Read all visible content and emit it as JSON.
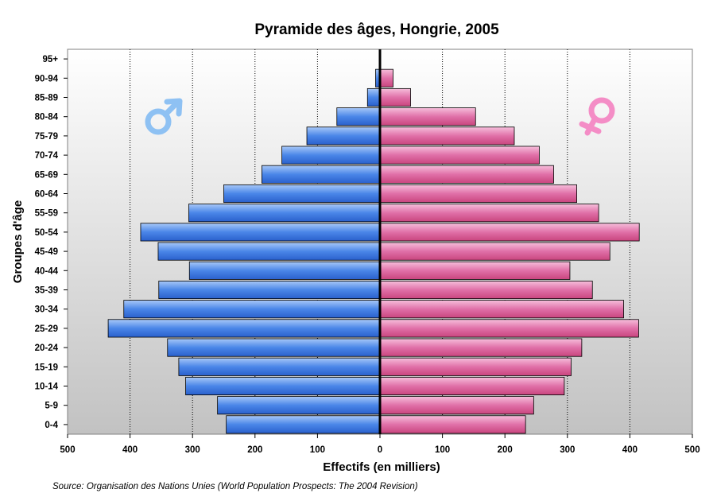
{
  "chart_data": {
    "type": "bar",
    "title": "Pyramide des âges, Hongrie, 2005",
    "xlabel": "Effectifs (en milliers)",
    "ylabel": "Groupes d'âge",
    "source": "Source: Organisation des Nations Unies (World Population Prospects: The 2004 Revision)",
    "categories": [
      "0-4",
      "5-9",
      "10-14",
      "15-19",
      "20-24",
      "25-29",
      "30-34",
      "35-39",
      "40-44",
      "45-49",
      "50-54",
      "55-59",
      "60-64",
      "65-69",
      "70-74",
      "75-79",
      "80-84",
      "85-89",
      "90-94",
      "95+"
    ],
    "x_ticks": [
      "500",
      "400",
      "300",
      "200",
      "100",
      "0",
      "100",
      "200",
      "300",
      "400",
      "500"
    ],
    "xlim": [
      -500,
      500
    ],
    "grid": "vertical dotted",
    "series": [
      {
        "name": "Hommes",
        "symbol": "♂",
        "color": "#4a86e8",
        "values": [
          246,
          260,
          311,
          322,
          340,
          435,
          410,
          354,
          305,
          355,
          383,
          306,
          250,
          189,
          157,
          117,
          69,
          20,
          7,
          1
        ]
      },
      {
        "name": "Femmes",
        "symbol": "♀",
        "color": "#e070a8",
        "values": [
          233,
          246,
          295,
          306,
          323,
          414,
          390,
          340,
          304,
          368,
          415,
          350,
          315,
          278,
          255,
          215,
          153,
          49,
          21,
          1
        ]
      }
    ],
    "legend_placement": "symbols on left and right"
  },
  "colors": {
    "male_light": "#a8c8f8",
    "male_dark": "#2a60cc",
    "female_light": "#f6bedb",
    "female_dark": "#c9457e",
    "male_symbol": "#8ec1f3",
    "female_symbol": "#f48dc6"
  }
}
